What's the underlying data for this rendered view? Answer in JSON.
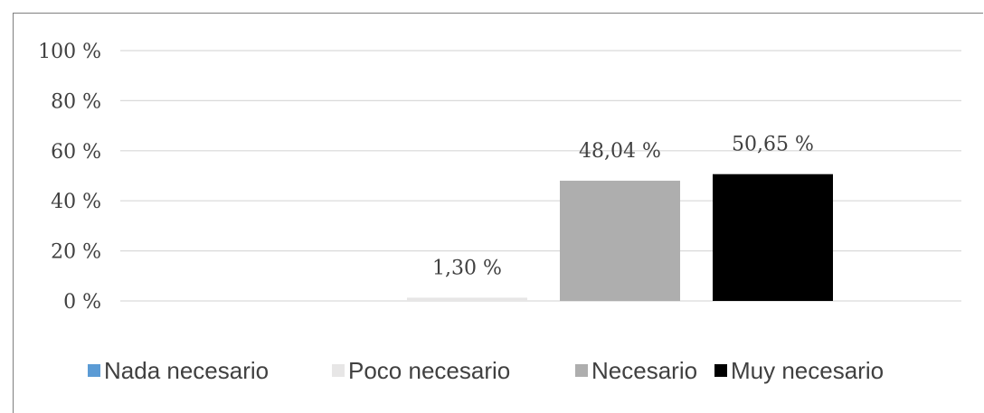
{
  "chart_data": {
    "type": "bar",
    "title": "",
    "xlabel": "",
    "ylabel": "",
    "ylim": [
      0,
      100
    ],
    "yticks": [
      0,
      20,
      40,
      60,
      80,
      100
    ],
    "ytick_labels": [
      "0 %",
      "20 %",
      "40 %",
      "60 %",
      "80 %",
      "100 %"
    ],
    "grid": true,
    "legend_position": "bottom",
    "series": [
      {
        "name": "Nada necesario",
        "value": 0,
        "label": "",
        "color": "#5b9bd5"
      },
      {
        "name": "Poco necesario",
        "value": 1.3,
        "label": "1,30 %",
        "color": "#e7e6e6"
      },
      {
        "name": "Necesario",
        "value": 48.04,
        "label": "48,04 %",
        "color": "#aeaeae"
      },
      {
        "name": "Muy necesario",
        "value": 50.65,
        "label": "50,65 %",
        "color": "#000000"
      }
    ]
  }
}
